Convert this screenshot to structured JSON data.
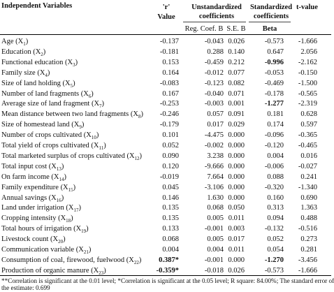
{
  "headers": {
    "independent_variables": "Independent Variables",
    "r_symbol": "'r'",
    "r_value": "Value",
    "unstandardized": "Unstandardized",
    "coefficients_1": "coefficients",
    "standardized": "Standardized",
    "coefficients_2": "coefficients",
    "t_value": "t-value",
    "reg_coef_b": "Reg. Coef. B",
    "se_b": "S.E. B",
    "beta": "Beta"
  },
  "rows": [
    {
      "var": "Age (X",
      "sub": "1",
      "r": "-0.137",
      "b": "-0.043",
      "se": "0.026",
      "beta": "-0.573",
      "t": "-1.666",
      "bold_r": false,
      "bold_beta": false
    },
    {
      "var": "Education (X",
      "sub": "2",
      "r": "-0.181",
      "b": "0.288",
      "se": "0.140",
      "beta": "0.647",
      "t": "2.056",
      "bold_r": false,
      "bold_beta": false
    },
    {
      "var": "Functional education (X",
      "sub": "3",
      "r": "0.153",
      "b": "-0.459",
      "se": "0.212",
      "beta": "-0.996",
      "t": "-2.162",
      "bold_r": false,
      "bold_beta": true
    },
    {
      "var": "Family size (X",
      "sub": "4",
      "r": "0.164",
      "b": "-0.012",
      "se": "0.077",
      "beta": "-0.053",
      "t": "-0.150",
      "bold_r": false,
      "bold_beta": false
    },
    {
      "var": "Size of land holding (X",
      "sub": "5",
      "r": "-0.083",
      "b": "-0.123",
      "se": "0.082",
      "beta": "-0.469",
      "t": "-1.500",
      "bold_r": false,
      "bold_beta": false
    },
    {
      "var": "Number of land fragments (X",
      "sub": "6",
      "r": "0.167",
      "b": "-0.040",
      "se": "0.071",
      "beta": "-0.178",
      "t": "-0.565",
      "bold_r": false,
      "bold_beta": false
    },
    {
      "var": "Average size of land fragment (X",
      "sub": "7",
      "r": "-0.253",
      "b": "-0.003",
      "se": "0.001",
      "beta": "-1.277",
      "t": "-2.319",
      "bold_r": false,
      "bold_beta": true
    },
    {
      "var": "Mean distance between two land fragments (X",
      "sub": "8",
      "r": "-0.246",
      "b": "0.057",
      "se": "0.091",
      "beta": "0.181",
      "t": "0.628",
      "bold_r": false,
      "bold_beta": false
    },
    {
      "var": "Size of homestead land (X",
      "sub": "9",
      "r": "-0.179",
      "b": "0.017",
      "se": "0.029",
      "beta": "0.174",
      "t": "0.597",
      "bold_r": false,
      "bold_beta": false
    },
    {
      "var": "Number of crops cultivated (X",
      "sub": "10",
      "r": "0.101",
      "b": "-4.475",
      "se": "0.000",
      "beta": "-0.096",
      "t": "-0.365",
      "bold_r": false,
      "bold_beta": false
    },
    {
      "var": "Total yield of crops cultivated (X",
      "sub": "11",
      "r": "0.052",
      "b": "-0.002",
      "se": "0.000",
      "beta": "-0.120",
      "t": "-0.465",
      "bold_r": false,
      "bold_beta": false
    },
    {
      "var": "Total marketed surplus of crops cultivated (X",
      "sub": "12",
      "r": "0.090",
      "b": "3.238",
      "se": "0.000",
      "beta": "0.004",
      "t": "0.016",
      "bold_r": false,
      "bold_beta": false
    },
    {
      "var": "Total input cost (X",
      "sub": "13",
      "r": "0.120",
      "b": "-9.666",
      "se": "0.000",
      "beta": "-0.006",
      "t": "-0.027",
      "bold_r": false,
      "bold_beta": false
    },
    {
      "var": "On farm income (X",
      "sub": "14",
      "r": "-0.019",
      "b": "7.664",
      "se": "0.000",
      "beta": "0.088",
      "t": "0.241",
      "bold_r": false,
      "bold_beta": false
    },
    {
      "var": "Family expenditure (X",
      "sub": "15",
      "r": "0.045",
      "b": "-3.106",
      "se": "0.000",
      "beta": "-0.320",
      "t": "-1.340",
      "bold_r": false,
      "bold_beta": false
    },
    {
      "var": "Annual savings (X",
      "sub": "16",
      "r": "0.146",
      "b": "1.630",
      "se": "0.000",
      "beta": "0.160",
      "t": "0.690",
      "bold_r": false,
      "bold_beta": false
    },
    {
      "var": "Land under irrigation (X",
      "sub": "17",
      "r": "0.135",
      "b": "0.068",
      "se": "0.050",
      "beta": "0.313",
      "t": "1.363",
      "bold_r": false,
      "bold_beta": false
    },
    {
      "var": "Cropping intensity (X",
      "sub": "18",
      "r": "0.135",
      "b": "0.005",
      "se": "0.011",
      "beta": "0.094",
      "t": "0.488",
      "bold_r": false,
      "bold_beta": false
    },
    {
      "var": "Total hours of irrigation (X",
      "sub": "19",
      "r": "0.133",
      "b": "-0.001",
      "se": "0.003",
      "beta": "-0.132",
      "t": "-0.516",
      "bold_r": false,
      "bold_beta": false
    },
    {
      "var": "Livestock count (X",
      "sub": "20",
      "r": "0.068",
      "b": "0.005",
      "se": "0.017",
      "beta": "0.052",
      "t": "0.273",
      "bold_r": false,
      "bold_beta": false
    },
    {
      "var": "Communication variable (X",
      "sub": "21",
      "r": "0.004",
      "b": "0.004",
      "se": "0.011",
      "beta": "0.054",
      "t": "0.281",
      "bold_r": false,
      "bold_beta": false
    },
    {
      "var": "Consumption of coal, firewood, fuelwood (X",
      "sub": "22",
      "r": "0.387*",
      "b": "-0.001",
      "se": "0.000",
      "beta": "-1.270",
      "t": "-3.456",
      "bold_r": true,
      "bold_beta": true
    },
    {
      "var": "Production of organic manure (X",
      "sub": "23",
      "r": "-0.359*",
      "b": "-0.018",
      "se": "0.026",
      "beta": "-0.573",
      "t": "-1.666",
      "bold_r": true,
      "bold_beta": false
    }
  ],
  "notes": {
    "line1": "**Correlation is significant at the 0.01 level; *Correlation is significant at the 0.05 level; R square: 84.00%; The standard error of",
    "line2": "the estimate: 0.699"
  }
}
